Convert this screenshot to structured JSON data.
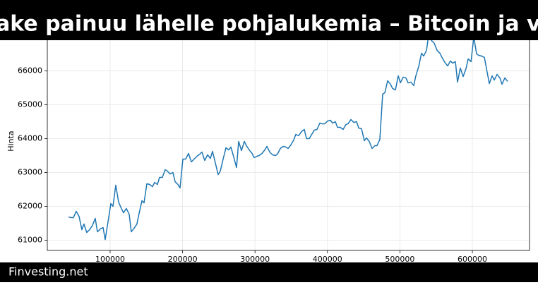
{
  "chart_data": {
    "type": "line",
    "title": "ake painuu lähelle pohjalukemia – Bitcoin ja velka",
    "y_label": "Hinta",
    "source": "Finvesting.net",
    "color": "#1f77b4",
    "grid": true,
    "xlim": [
      13300,
      678900
    ],
    "ylim": [
      60700,
      67300
    ],
    "xticks": [
      100000,
      200000,
      300000,
      400000,
      500000,
      600000
    ],
    "yticks": [
      61000,
      62000,
      63000,
      64000,
      65000,
      66000
    ],
    "x": [
      42500,
      46400,
      49300,
      53200,
      57100,
      61000,
      63900,
      67800,
      71700,
      75600,
      79500,
      82500,
      86400,
      90300,
      93200,
      97100,
      101000,
      103900,
      107800,
      111700,
      115600,
      118500,
      122400,
      126300,
      129200,
      133100,
      137000,
      140000,
      143900,
      146800,
      150700,
      154600,
      158500,
      161400,
      165300,
      168200,
      172100,
      176000,
      178900,
      182800,
      186700,
      189700,
      193600,
      196500,
      200400,
      204300,
      208200,
      212100,
      216000,
      219900,
      223800,
      226700,
      230600,
      234500,
      238400,
      241300,
      245200,
      249100,
      252100,
      256000,
      259900,
      263700,
      266700,
      270600,
      274500,
      277400,
      281300,
      285200,
      288100,
      292000,
      295900,
      298800,
      302700,
      305700,
      309600,
      313500,
      316400,
      320300,
      324200,
      328100,
      331000,
      334900,
      338800,
      342700,
      345600,
      349500,
      353400,
      356300,
      360200,
      364100,
      368000,
      371000,
      374900,
      378800,
      381700,
      385600,
      389500,
      392400,
      396300,
      400200,
      404100,
      407000,
      410900,
      413800,
      417700,
      421600,
      425500,
      428500,
      432400,
      436300,
      440200,
      443100,
      447000,
      450900,
      453800,
      457700,
      461600,
      465500,
      468400,
      472300,
      476200,
      479200,
      483100,
      487000,
      489900,
      493800,
      497700,
      500600,
      504500,
      508400,
      511300,
      515200,
      519100,
      522000,
      525900,
      529800,
      532800,
      536700,
      540600,
      543500,
      547400,
      551300,
      555200,
      558100,
      562000,
      565900,
      569800,
      572700,
      576600,
      579500,
      583400,
      587300,
      591200,
      594200,
      598100,
      602000,
      605800,
      608800,
      612700,
      616600,
      619500,
      623400,
      627300,
      630200,
      634100,
      638000,
      640900,
      644800,
      648700
    ],
    "values": [
      61688,
      61667,
      61667,
      61854,
      61708,
      61313,
      61479,
      61229,
      61313,
      61438,
      61646,
      61250,
      61333,
      61375,
      61021,
      61542,
      62083,
      62000,
      62625,
      62125,
      61938,
      61813,
      61938,
      61771,
      61250,
      61354,
      61479,
      61792,
      62167,
      62104,
      62667,
      62646,
      62583,
      62708,
      62646,
      62854,
      62854,
      63083,
      63042,
      62958,
      63000,
      62729,
      62646,
      62542,
      63396,
      63396,
      63563,
      63313,
      63396,
      63479,
      63542,
      63604,
      63354,
      63521,
      63417,
      63625,
      63292,
      62938,
      63042,
      63396,
      63729,
      63667,
      63750,
      63458,
      63146,
      63917,
      63646,
      63917,
      63792,
      63667,
      63563,
      63438,
      63479,
      63500,
      63563,
      63667,
      63771,
      63604,
      63521,
      63500,
      63542,
      63708,
      63771,
      63750,
      63708,
      63813,
      63958,
      64125,
      64083,
      64208,
      64271,
      64000,
      64000,
      64146,
      64250,
      64271,
      64458,
      64438,
      64438,
      64521,
      64542,
      64458,
      64500,
      64333,
      64333,
      64271,
      64417,
      64438,
      64563,
      64479,
      64500,
      64313,
      64292,
      63938,
      64021,
      63917,
      63708,
      63792,
      63792,
      63979,
      65313,
      65354,
      65708,
      65604,
      65479,
      65438,
      65854,
      65646,
      65813,
      65792,
      65646,
      65667,
      65563,
      65854,
      66125,
      66521,
      66438,
      66604,
      67200,
      66896,
      66813,
      66604,
      66521,
      66396,
      66250,
      66146,
      66292,
      66229,
      66271,
      65667,
      66083,
      65833,
      66063,
      66354,
      66271,
      67000,
      66500,
      66458,
      66438,
      66396,
      66063,
      65625,
      65854,
      65729,
      65896,
      65792,
      65604,
      65792,
      65688
    ]
  }
}
